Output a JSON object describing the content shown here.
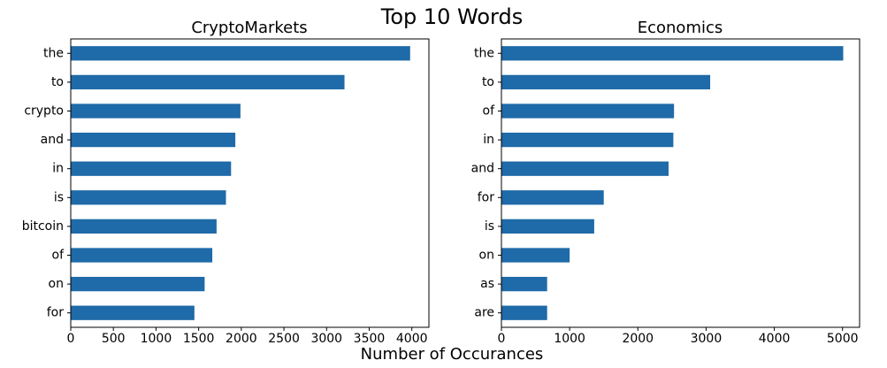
{
  "figure": {
    "title": "Top 10 Words",
    "xlabel": "Number of Occurances"
  },
  "chart_data": [
    {
      "type": "bar",
      "orientation": "horizontal",
      "title": "CryptoMarkets",
      "xlabel": "",
      "ylabel": "",
      "xlim": [
        0,
        4200
      ],
      "xticks": [
        0,
        500,
        1000,
        1500,
        2000,
        2500,
        3000,
        3500,
        4000
      ],
      "categories": [
        "the",
        "to",
        "crypto",
        "and",
        "in",
        "is",
        "bitcoin",
        "of",
        "on",
        "for"
      ],
      "values": [
        3980,
        3210,
        1990,
        1930,
        1880,
        1820,
        1710,
        1660,
        1570,
        1450
      ],
      "color": "#1f6aa8",
      "grid": false,
      "legend": false
    },
    {
      "type": "bar",
      "orientation": "horizontal",
      "title": "Economics",
      "xlabel": "",
      "ylabel": "",
      "xlim": [
        0,
        5250
      ],
      "xticks": [
        0,
        1000,
        2000,
        3000,
        4000,
        5000
      ],
      "categories": [
        "the",
        "to",
        "of",
        "in",
        "and",
        "for",
        "is",
        "on",
        "as",
        "are"
      ],
      "values": [
        5010,
        3060,
        2530,
        2520,
        2450,
        1500,
        1360,
        1000,
        670,
        670
      ],
      "color": "#1f6aa8",
      "grid": false,
      "legend": false
    }
  ]
}
